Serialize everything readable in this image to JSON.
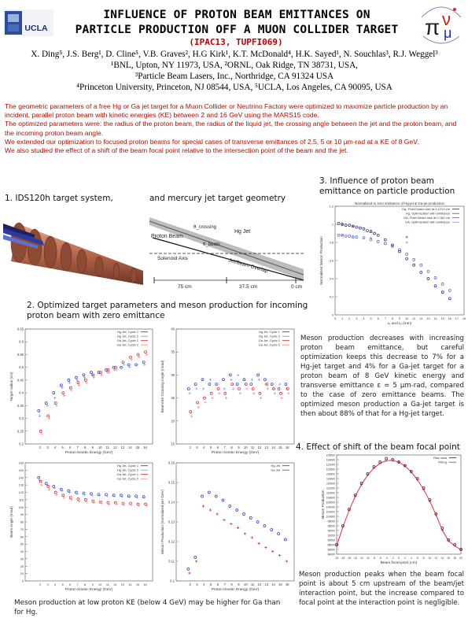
{
  "header": {
    "title_line1": "INFLUENCE OF PROTON BEAM EMITTANCES ON",
    "title_line2": "PARTICLE PRODUCTION OFF A MUON COLLIDER TARGET",
    "paper_code": "(IPAC13, TUPFI069)",
    "ucla_logo_text": "UCLA",
    "colors": {
      "code": "#c00000",
      "abstract": "#b01000"
    }
  },
  "authors": {
    "line1": "X. Ding⁵, J.S. Berg¹, D. Cline⁵, V.B. Graves², H.G Kirk¹, K.T. McDonald⁴, H.K. Sayed¹, N. Souchlas³, R.J. Weggel³",
    "line2": "¹BNL, Upton, NY 11973, USA,       ²ORNL, Oak Ridge, TN 38731, USA,",
    "line3": "³Particle Beam Lasers, Inc., Northridge, CA 91324 USA",
    "line4": "⁴Princeton University, Princeton, NJ 08544, USA,       ⁵UCLA, Los Angeles, CA 90095, USA"
  },
  "abstract": {
    "p1": "The geometric parameters of a free Hg or Ga jet target for a Muon Collider or Neutrino Factory were optimized to maximize particle production by an incident, parallel proton beam with kinetic energies (KE) between 2 and 16 GeV using the MARS15 code.",
    "p2": "The optimized parameters were: the radius of the proton beam, the radius of the liquid jet, the crossing angle between the jet and the proton beam, and the incoming proton beam angle.",
    "p3": "We extended our optimization to focused proton beams for special cases of transverse emittances of 2.5, 5 or 10 μm-rad at a KE of 8 GeV.",
    "p4": "We also studied the effect of a shift of the beam focal point relative to the intersection point of the beam and the jet."
  },
  "section1": {
    "label_a": "1. IDS120h target system,",
    "label_b": "and mercury jet target geometry"
  },
  "jet_diagram": {
    "theta_label": "θ_crossing",
    "hg_jet": "Hg Jet",
    "proton_beam": "Proton Beam",
    "theta_small": "θ_beam",
    "solenoid_axis": "Solenoid Axis",
    "jet_beam_overlap": "Jet/Beam Overlap",
    "dim1": "75 cm",
    "dim2": "37.5 cm",
    "dim3": "0 cm"
  },
  "section2": {
    "label": "2. Optimized target parameters and meson production for incoming proton beam with zero emittance"
  },
  "section3": {
    "label": "3. Influence of proton beam emittance on particle production"
  },
  "section4": {
    "label": "4. Effect of shift of the beam focal point"
  },
  "text_emittance": "Meson production decreases with increasing proton beam emittance, but careful optimization keeps this decrease to 7% for a Hg-jet target and 4% for a Ga-jet target for a proton beam of 8 GeV kinetic energy and transverse emittance ε = 5 μm-rad, compared to the case of zero emittance beams. The optimized meson production a Ga-jet target is then about 88% of that for a Hg-jet target.",
  "text_lowke": "Meson production at low proton KE (below 4 GeV) may be higher for Ga than for Hg.",
  "text_focal": "Meson production peaks when the beam focal point is about 5 cm upstream of the beam/jet interaction point, but the increase compared to focal point at the interaction point is negligible.",
  "chart_data": [
    {
      "id": "radius",
      "type": "scatter",
      "xlabel": "Proton Kinetic Energy (GeV)",
      "ylabel": "Target radius (cm)",
      "xlim": [
        0,
        17
      ],
      "ylim": [
        0.2,
        0.65
      ],
      "yticks": [
        "0.65",
        "0.6",
        "0.55",
        "0.5",
        "0.45",
        "0.4",
        "0.35",
        "0.3",
        "0.25",
        "0.2"
      ],
      "legend": [
        "Hg Jet, Cycle 1",
        "Hg Jet, Cycle 2",
        "Ga Jet, Cycle 1",
        "Ga Jet, Cycle 2"
      ],
      "x": [
        2,
        3,
        4,
        5,
        6,
        7,
        8,
        9,
        10,
        11,
        12,
        13,
        14,
        15,
        16
      ],
      "series": [
        {
          "name": "Hg Jet, Cycle 1",
          "color": "#2030c0",
          "values": [
            0.33,
            0.36,
            0.4,
            0.43,
            0.45,
            0.46,
            0.47,
            0.48,
            0.48,
            0.49,
            0.5,
            0.5,
            0.51,
            0.51,
            0.52
          ]
        },
        {
          "name": "Hg Jet, Cycle 2",
          "color": "#7090ff",
          "values": [
            0.31,
            0.35,
            0.38,
            0.42,
            0.44,
            0.45,
            0.46,
            0.47,
            0.48,
            0.48,
            0.49,
            0.5,
            0.5,
            0.51,
            0.51
          ]
        },
        {
          "name": "Ga Jet, Cycle 1",
          "color": "#d02020",
          "values": [
            0.25,
            0.31,
            0.36,
            0.4,
            0.42,
            0.44,
            0.45,
            0.47,
            0.48,
            0.49,
            0.5,
            0.52,
            0.54,
            0.55,
            0.56
          ]
        },
        {
          "name": "Ga Jet, Cycle 2",
          "color": "#ff8080",
          "values": [
            0.24,
            0.3,
            0.35,
            0.39,
            0.41,
            0.43,
            0.44,
            0.46,
            0.47,
            0.48,
            0.49,
            0.51,
            0.53,
            0.54,
            0.55
          ]
        }
      ]
    },
    {
      "id": "angle",
      "type": "scatter",
      "xlabel": "Proton Kinetic Energy (GeV)",
      "ylabel": "Beam/Jet Crossing Angle (mrad)",
      "xlim": [
        0,
        17
      ],
      "ylim": [
        15,
        40
      ],
      "yticks": [
        "40",
        "35",
        "30",
        "25",
        "20",
        "15"
      ],
      "legend": [
        "Hg Jet, Cycle 1",
        "Hg Jet, Cycle 2",
        "Ga Jet, Cycle 1",
        "Ga Jet, Cycle 2"
      ],
      "x": [
        2,
        3,
        4,
        5,
        6,
        7,
        8,
        9,
        10,
        11,
        12,
        13,
        14,
        15,
        16
      ],
      "series": [
        {
          "name": "Hg Jet, Cycle 1",
          "color": "#2030c0",
          "values": [
            27,
            28,
            29,
            28,
            28,
            29,
            30,
            28,
            29,
            28,
            30,
            29,
            28,
            27,
            28
          ]
        },
        {
          "name": "Hg Jet, Cycle 2",
          "color": "#7090ff",
          "values": [
            26,
            27,
            27,
            29,
            28,
            27,
            29,
            30,
            28,
            29,
            29,
            28,
            27,
            28,
            27
          ]
        },
        {
          "name": "Ga Jet, Cycle 1",
          "color": "#d02020",
          "values": [
            22,
            24,
            25,
            26,
            27,
            26,
            28,
            27,
            28,
            27,
            26,
            28,
            27,
            26,
            27
          ]
        },
        {
          "name": "Ga Jet, Cycle 2",
          "color": "#ff8080",
          "values": [
            21,
            23,
            24,
            25,
            26,
            25,
            27,
            26,
            27,
            26,
            25,
            27,
            26,
            25,
            26
          ]
        }
      ]
    },
    {
      "id": "beamangle",
      "type": "scatter",
      "xlabel": "Proton Kinetic Energy (GeV)",
      "ylabel": "Beam Angle (mrad)",
      "xlim": [
        0,
        17
      ],
      "ylim": [
        0,
        160
      ],
      "yticks": [
        "160",
        "150",
        "140",
        "130",
        "120",
        "110",
        "100",
        "90",
        "80",
        "70",
        "60",
        "50",
        "40",
        "30",
        "20",
        "10",
        "0"
      ],
      "legend": [
        "Hg Jet, Cycle 1",
        "Hg Jet, Cycle 2",
        "Ga Jet, Cycle 1",
        "Ga Jet, Cycle 2"
      ],
      "x": [
        2,
        3,
        4,
        5,
        6,
        7,
        8,
        9,
        10,
        11,
        12,
        13,
        14,
        15,
        16
      ],
      "series": [
        {
          "name": "Hg Jet, Cycle 1",
          "color": "#2030c0",
          "values": [
            140,
            132,
            128,
            124,
            122,
            120,
            119,
            118,
            117,
            117,
            116,
            116,
            115,
            115,
            114
          ]
        },
        {
          "name": "Hg Jet, Cycle 2",
          "color": "#7090ff",
          "values": [
            136,
            130,
            126,
            122,
            120,
            118,
            117,
            116,
            116,
            115,
            115,
            114,
            114,
            113,
            113
          ]
        },
        {
          "name": "Ga Jet, Cycle 1",
          "color": "#d02020",
          "values": [
            135,
            128,
            120,
            116,
            113,
            111,
            110,
            108,
            107,
            106,
            106,
            105,
            105,
            104,
            104
          ]
        },
        {
          "name": "Ga Jet, Cycle 2",
          "color": "#ff8080",
          "values": [
            130,
            124,
            117,
            113,
            110,
            108,
            107,
            106,
            105,
            104,
            104,
            103,
            103,
            102,
            102
          ]
        }
      ]
    },
    {
      "id": "meson",
      "type": "scatter",
      "xlabel": "Proton Kinetic Energy (GeV)",
      "ylabel": "Meson Production (normalized per GeV)",
      "xlim": [
        0,
        17
      ],
      "ylim": [
        0.1,
        0.16
      ],
      "yticks": [
        "0.16",
        "0.15",
        "0.14",
        "0.13",
        "0.12",
        "0.11",
        "0.1"
      ],
      "legend": [
        "Hg Jet",
        "Ga Jet"
      ],
      "x": [
        2,
        3,
        4,
        5,
        6,
        7,
        8,
        9,
        10,
        11,
        12,
        13,
        14,
        15,
        16
      ],
      "series": [
        {
          "name": "Hg Jet",
          "color": "#2030c0",
          "values": [
            0.106,
            0.112,
            0.143,
            0.145,
            0.143,
            0.141,
            0.138,
            0.136,
            0.134,
            0.132,
            0.13,
            0.128,
            0.126,
            0.124,
            0.121
          ]
        },
        {
          "name": "Ga Jet",
          "color": "#d02020",
          "values": [
            0.104,
            0.11,
            0.138,
            0.136,
            0.134,
            0.131,
            0.129,
            0.127,
            0.124,
            0.122,
            0.119,
            0.117,
            0.115,
            0.113,
            0.11
          ]
        }
      ]
    },
    {
      "id": "emittance",
      "type": "scatter",
      "title": "Normalized to zero emittance of Hg-jet & Ga-jet production",
      "xlabel": "εₓ and εᵧ (mm)",
      "ylabel": "Normalized Meson Production",
      "xlim": [
        0,
        18
      ],
      "ylim": [
        0,
        1.2
      ],
      "xticks": [
        "0",
        "1",
        "2",
        "3",
        "4",
        "5",
        "6",
        "7",
        "8",
        "9",
        "10",
        "11",
        "12",
        "13",
        "14",
        "15",
        "16",
        "17",
        "18"
      ],
      "yticks": [
        "1.2",
        "1",
        "0.8",
        "0.6",
        "0.4",
        "0.2",
        "0"
      ],
      "legend": [
        "Hg, Fixed beam size at 0.1212 cm",
        "Hg, Optimization with emittance",
        "GA, Fixed beam size at 0.182 cm",
        "GA, Optimization with emittance"
      ],
      "series": [
        {
          "name": "Hg, Fixed beam size at 0.1212 cm",
          "color": "#202080",
          "x": [
            0.5,
            1,
            1.5,
            2,
            2.5,
            3,
            3.5,
            4,
            4.5,
            5,
            5.5,
            6,
            7,
            8,
            9,
            10,
            11,
            12,
            13,
            14,
            15,
            16
          ],
          "values": [
            1.01,
            1.0,
            0.99,
            0.99,
            0.98,
            0.97,
            0.96,
            0.95,
            0.93,
            0.92,
            0.9,
            0.88,
            0.83,
            0.77,
            0.7,
            0.62,
            0.55,
            0.47,
            0.4,
            0.32,
            0.25,
            0.18
          ]
        },
        {
          "name": "Hg, Optimization with emittance",
          "color": "#c03030",
          "x": [
            1,
            2.5,
            5,
            10
          ],
          "values": [
            1.0,
            0.98,
            0.93,
            0.86
          ]
        },
        {
          "name": "GA, Fixed beam size at 0.182 cm",
          "color": "#5060d0",
          "x": [
            0.5,
            1,
            1.5,
            2,
            2.5,
            3,
            4,
            5,
            6,
            7,
            8,
            9,
            10,
            11,
            12,
            13,
            14,
            15,
            16
          ],
          "values": [
            0.88,
            0.88,
            0.87,
            0.87,
            0.86,
            0.86,
            0.85,
            0.83,
            0.81,
            0.79,
            0.76,
            0.72,
            0.67,
            0.61,
            0.55,
            0.48,
            0.41,
            0.34,
            0.27
          ]
        },
        {
          "name": "GA, Optimization with emittance",
          "color": "#8080ff",
          "x": [
            1,
            2.5,
            5,
            10
          ],
          "values": [
            0.88,
            0.87,
            0.85,
            0.8
          ]
        }
      ]
    },
    {
      "id": "focal",
      "type": "line",
      "xlabel": "Beam focal point (cm)",
      "ylabel": "Meson Production",
      "ylim": [
        84000,
        126000
      ],
      "yticks": [
        "126000",
        "124000",
        "122000",
        "120000",
        "118000",
        "116000",
        "114000",
        "112000",
        "110000",
        "108000",
        "106000",
        "104000",
        "102000",
        "100000",
        "98000",
        "96000",
        "94000",
        "92000",
        "90000",
        "88000",
        "86000",
        "84000"
      ],
      "legend": [
        "Raw data",
        "Fitting"
      ],
      "x": [
        -20,
        -18,
        -16,
        -14,
        -12,
        -10,
        -8,
        -6,
        -4,
        -2,
        0,
        2,
        4,
        6,
        8,
        10,
        12,
        14,
        16,
        18,
        20
      ],
      "series": [
        {
          "name": "Raw data",
          "color": "#101080",
          "values": [
            88000,
            96000,
            103000,
            109000,
            114000,
            118000,
            121000,
            123000,
            124500,
            124000,
            123000,
            121500,
            119000,
            116000,
            112000,
            107000,
            101000,
            95000,
            90000,
            88000,
            86000
          ]
        },
        {
          "name": "Fitting",
          "color": "#e02020",
          "values": [
            87500,
            95500,
            102500,
            108500,
            113500,
            117500,
            120500,
            122500,
            123600,
            123700,
            123000,
            121300,
            118800,
            115500,
            111400,
            106400,
            100600,
            94200,
            89600,
            87600,
            85800
          ]
        }
      ]
    }
  ]
}
